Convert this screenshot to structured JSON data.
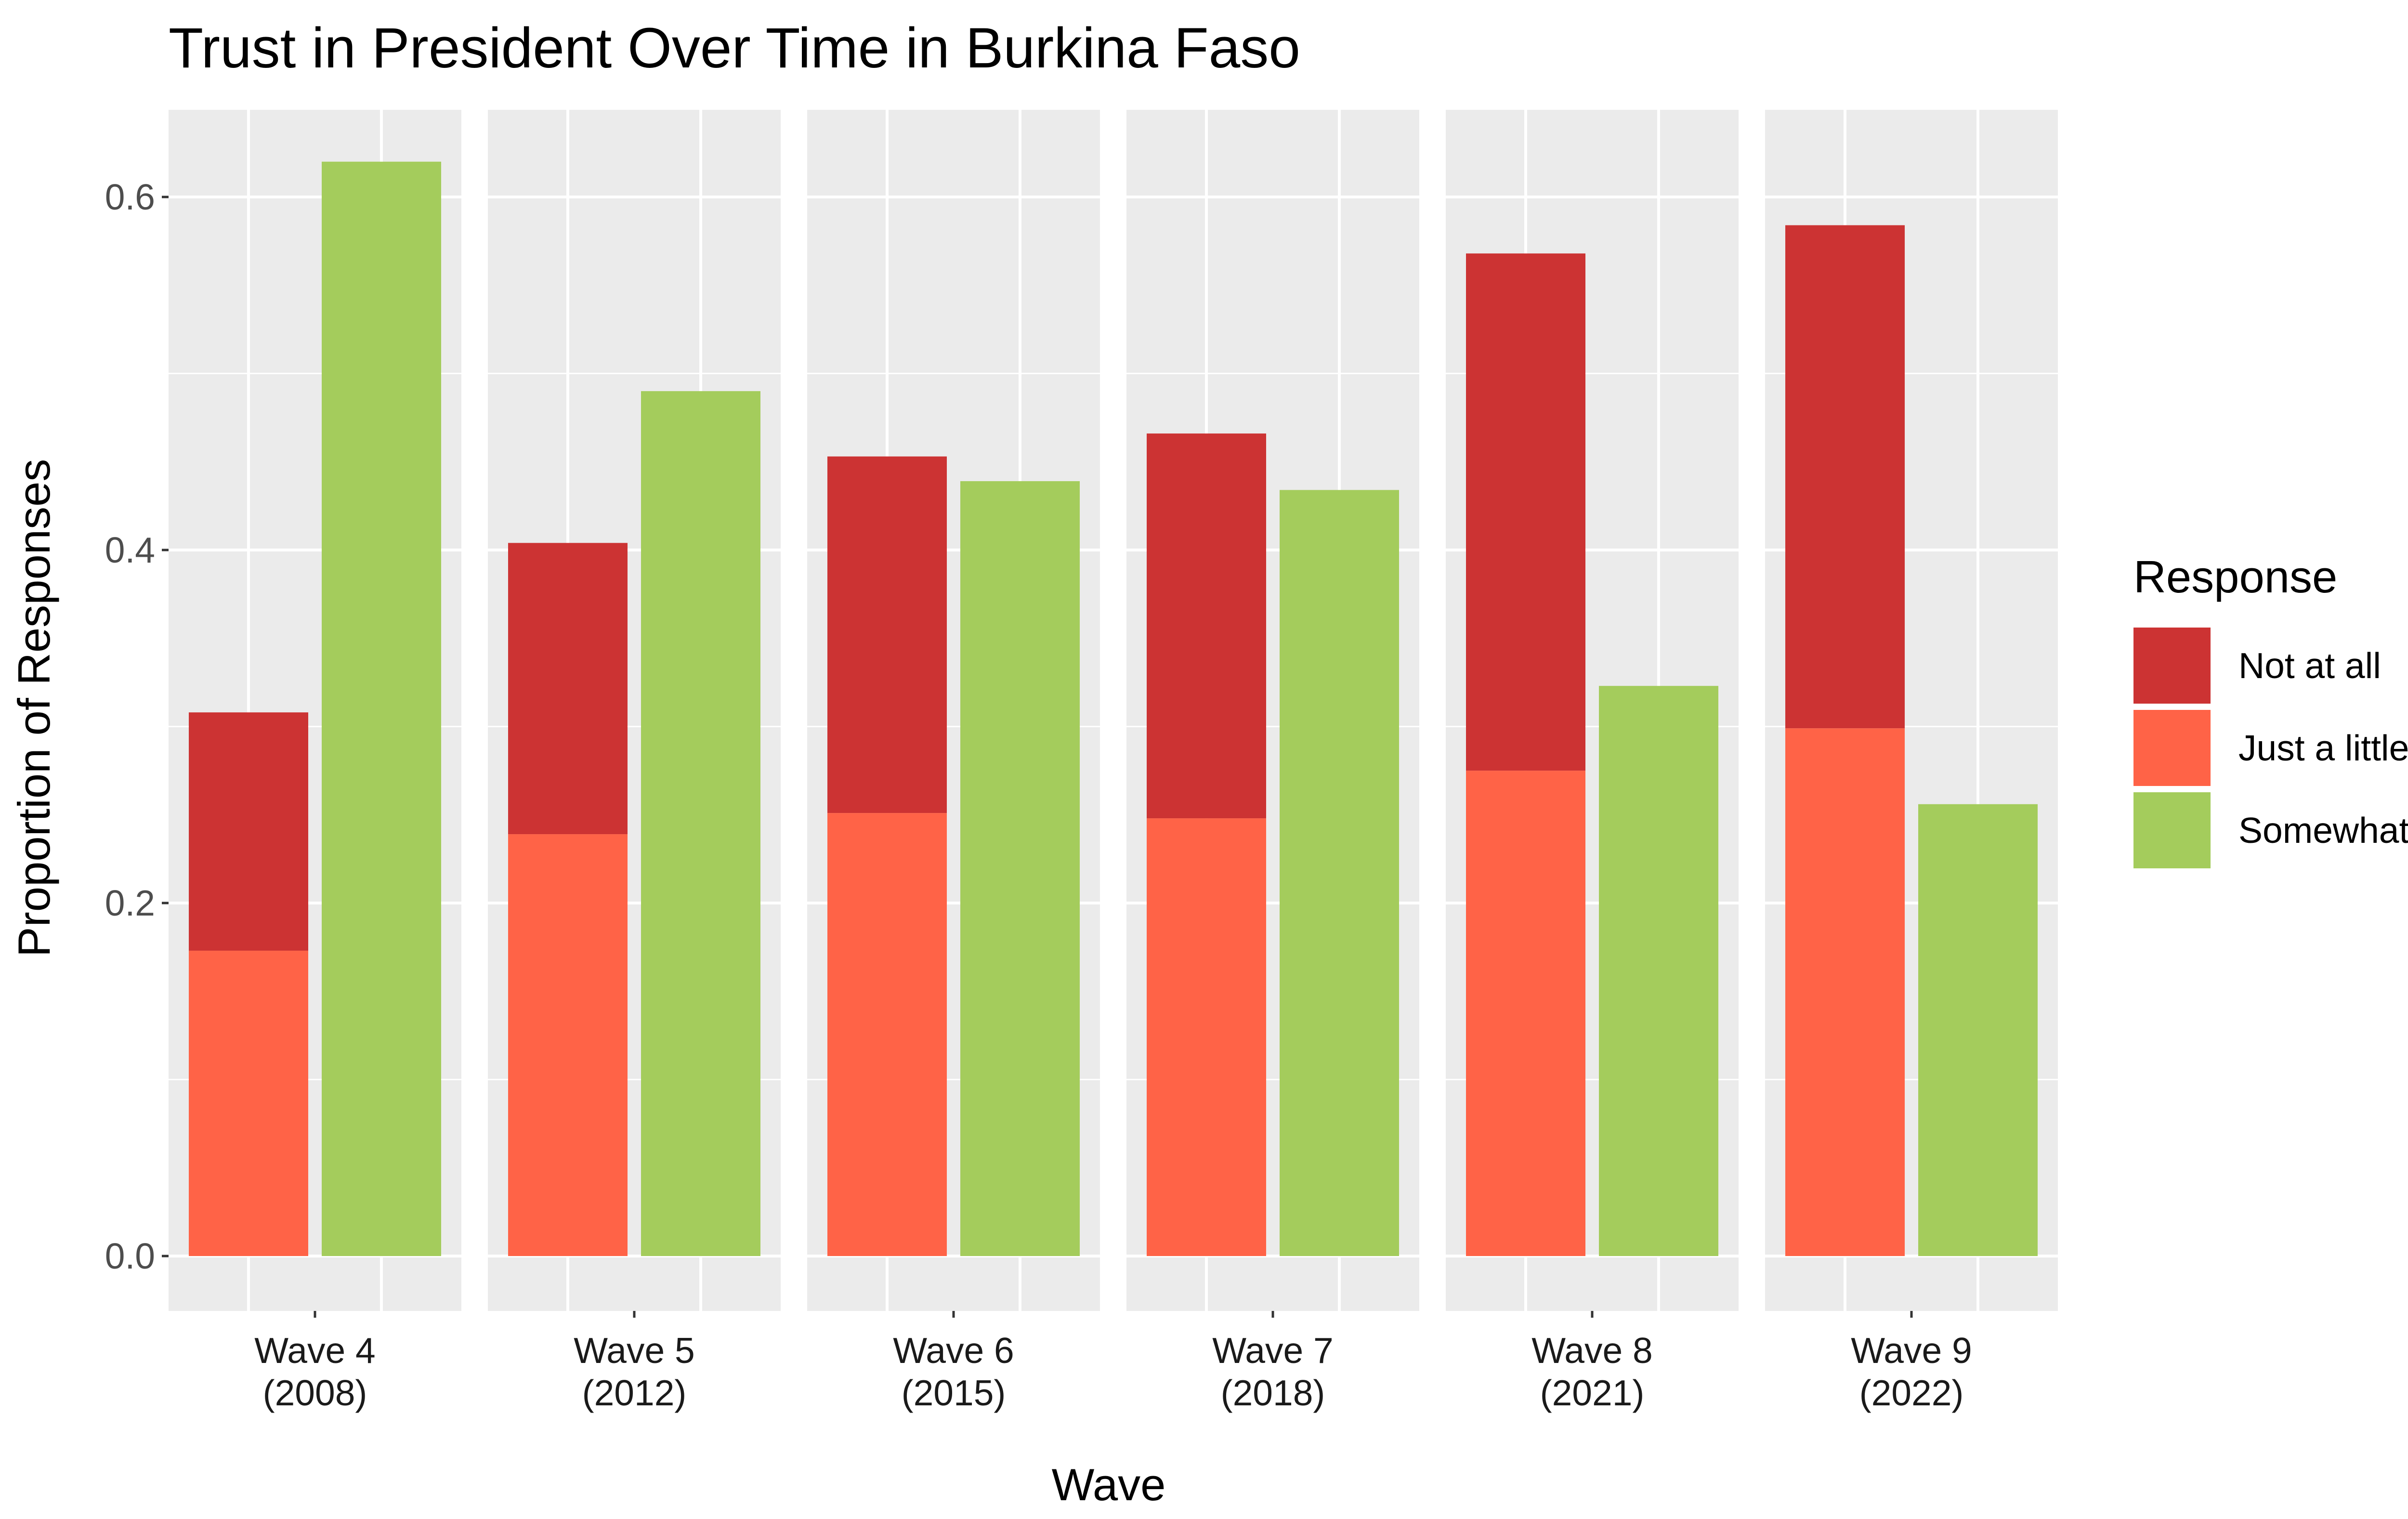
{
  "chart_data": {
    "type": "bar",
    "title": "Trust in President Over Time in Burkina Faso",
    "xlabel": "Wave",
    "ylabel": "Proportion of Responses",
    "ylim": [
      -0.06,
      0.65
    ],
    "yticks": [
      0.0,
      0.2,
      0.4,
      0.6
    ],
    "ytick_labels": [
      "0.0",
      "0.2",
      "0.4",
      "0.6"
    ],
    "grid": true,
    "legend_position": "right",
    "legend_title": "Response",
    "categories": [
      {
        "wave": "Wave 4",
        "year": "(2008)"
      },
      {
        "wave": "Wave 5",
        "year": "(2012)"
      },
      {
        "wave": "Wave 6",
        "year": "(2015)"
      },
      {
        "wave": "Wave 7",
        "year": "(2018)"
      },
      {
        "wave": "Wave 8",
        "year": "(2021)"
      },
      {
        "wave": "Wave 9",
        "year": "(2022)"
      }
    ],
    "series": [
      {
        "name": "Not at all",
        "color": "#CC3333",
        "stack": "distrust",
        "values": [
          0.135,
          0.165,
          0.202,
          0.218,
          0.293,
          0.285
        ]
      },
      {
        "name": "Just a little",
        "color": "#FF6347",
        "stack": "distrust",
        "values": [
          0.173,
          0.239,
          0.251,
          0.248,
          0.275,
          0.299
        ]
      },
      {
        "name": "Somewhat",
        "color": "#A4CC5C",
        "stack": "trust",
        "values": [
          0.62,
          0.49,
          0.439,
          0.434,
          0.323,
          0.256
        ]
      }
    ]
  }
}
